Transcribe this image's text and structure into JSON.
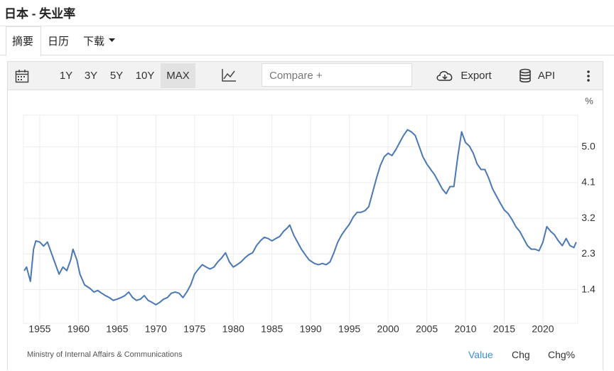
{
  "header": {
    "title": "日本 - 失业率"
  },
  "tabs": [
    "摘要",
    "日历",
    "下载"
  ],
  "toolbar": {
    "ranges": [
      "1Y",
      "3Y",
      "5Y",
      "10Y",
      "MAX"
    ],
    "compare": "Compare +",
    "export": "Export",
    "api": "API"
  },
  "chart_data": {
    "type": "line",
    "y_label": "%",
    "x": [
      1953.0,
      1953.3,
      1953.8,
      1954.2,
      1954.5,
      1955.0,
      1955.5,
      1956.0,
      1956.5,
      1957.0,
      1957.5,
      1958.0,
      1958.5,
      1959.0,
      1959.3,
      1959.8,
      1960.2,
      1960.8,
      1961.5,
      1962.0,
      1962.5,
      1963.0,
      1963.5,
      1964.0,
      1964.5,
      1965.0,
      1965.5,
      1966.0,
      1966.5,
      1967.0,
      1967.5,
      1968.0,
      1968.5,
      1969.0,
      1969.5,
      1970.0,
      1970.5,
      1971.0,
      1971.5,
      1972.0,
      1972.5,
      1973.0,
      1973.5,
      1974.0,
      1974.5,
      1975.0,
      1975.5,
      1976.0,
      1976.5,
      1977.0,
      1977.5,
      1978.0,
      1978.5,
      1979.0,
      1979.5,
      1980.0,
      1980.5,
      1981.0,
      1981.5,
      1982.0,
      1982.5,
      1983.0,
      1983.5,
      1984.0,
      1984.5,
      1985.0,
      1985.5,
      1986.0,
      1986.5,
      1987.0,
      1987.3,
      1987.8,
      1988.3,
      1988.8,
      1989.3,
      1989.8,
      1990.5,
      1991.0,
      1991.5,
      1992.0,
      1992.5,
      1993.0,
      1993.5,
      1994.0,
      1994.5,
      1995.0,
      1995.5,
      1996.0,
      1996.5,
      1997.0,
      1997.5,
      1998.0,
      1998.5,
      1999.0,
      1999.5,
      2000.0,
      2000.5,
      2001.0,
      2001.5,
      2002.0,
      2002.5,
      2003.0,
      2003.5,
      2004.0,
      2004.5,
      2005.0,
      2005.5,
      2006.0,
      2006.5,
      2007.0,
      2007.5,
      2008.0,
      2008.5,
      2009.0,
      2009.5,
      2010.0,
      2010.5,
      2011.0,
      2011.5,
      2012.0,
      2012.5,
      2013.0,
      2013.5,
      2014.0,
      2014.5,
      2015.0,
      2015.5,
      2016.0,
      2016.5,
      2017.0,
      2017.5,
      2018.0,
      2018.5,
      2019.0,
      2019.5,
      2020.0,
      2020.5,
      2021.0,
      2021.5,
      2022.0,
      2022.5,
      2023.0,
      2023.5,
      2024.0,
      2024.3
    ],
    "series": [
      {
        "color": "#4a78b5",
        "values": [
          1.88,
          1.97,
          1.61,
          2.42,
          2.63,
          2.6,
          2.5,
          2.6,
          2.33,
          2.06,
          1.79,
          1.97,
          1.88,
          2.15,
          2.42,
          2.15,
          1.79,
          1.52,
          1.43,
          1.34,
          1.38,
          1.31,
          1.25,
          1.2,
          1.13,
          1.16,
          1.2,
          1.25,
          1.34,
          1.2,
          1.13,
          1.16,
          1.25,
          1.13,
          1.08,
          1.02,
          1.08,
          1.16,
          1.2,
          1.31,
          1.34,
          1.31,
          1.2,
          1.34,
          1.52,
          1.79,
          1.92,
          2.03,
          1.97,
          1.92,
          1.97,
          2.1,
          2.2,
          2.33,
          2.1,
          1.97,
          2.03,
          2.1,
          2.2,
          2.28,
          2.33,
          2.51,
          2.63,
          2.72,
          2.69,
          2.63,
          2.69,
          2.74,
          2.87,
          2.96,
          3.03,
          2.78,
          2.6,
          2.42,
          2.28,
          2.15,
          2.06,
          2.03,
          2.06,
          2.03,
          2.1,
          2.33,
          2.6,
          2.78,
          2.92,
          3.05,
          3.23,
          3.35,
          3.35,
          3.39,
          3.49,
          3.85,
          4.21,
          4.53,
          4.75,
          4.84,
          4.78,
          4.93,
          5.11,
          5.29,
          5.43,
          5.38,
          5.29,
          5.02,
          4.75,
          4.57,
          4.43,
          4.3,
          4.12,
          3.94,
          3.82,
          4.0,
          4.0,
          4.75,
          5.38,
          5.11,
          5.02,
          4.84,
          4.57,
          4.43,
          4.43,
          4.21,
          3.94,
          3.76,
          3.58,
          3.41,
          3.32,
          3.17,
          2.99,
          2.87,
          2.69,
          2.51,
          2.42,
          2.42,
          2.38,
          2.6,
          2.99,
          2.87,
          2.78,
          2.63,
          2.51,
          2.69,
          2.51,
          2.46,
          2.6
        ]
      }
    ],
    "xlim": [
      1952.9,
      2024.5
    ],
    "ylim": [
      0.55,
      5.8
    ],
    "xticks": [
      1955,
      1960,
      1965,
      1970,
      1975,
      1980,
      1985,
      1990,
      1995,
      2000,
      2005,
      2010,
      2015,
      2020
    ],
    "yticks": [
      1.4,
      2.3,
      3.2,
      4.1,
      {
        "value": 5,
        "label": "5.0"
      }
    ],
    "grid": true,
    "source": "Ministry of Internal Affairs & Communications",
    "views": [
      "Value",
      "Chg",
      "Chg%"
    ]
  }
}
